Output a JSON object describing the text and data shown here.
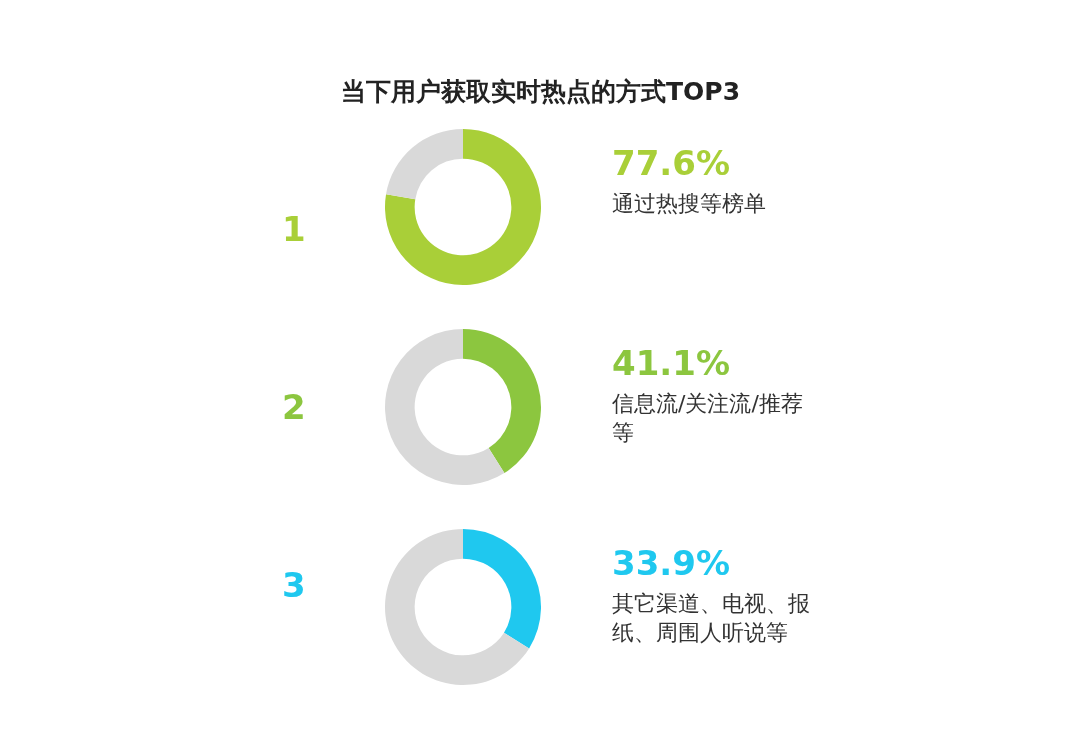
{
  "chart_data": [
    {
      "type": "donut",
      "title": "当下用户获取实时热点的方式TOP3",
      "categories": [
        "通过热搜等榜单",
        null
      ],
      "values": [
        77.6,
        22.4
      ],
      "colors": [
        "#a9cf38",
        "#d9d9d9"
      ],
      "value_labels": [
        "77.6%",
        null
      ],
      "annotations": [
        "1"
      ]
    },
    {
      "type": "donut",
      "categories": [
        "信息流/关注流/推荐等",
        null
      ],
      "values": [
        41.1,
        58.9
      ],
      "colors": [
        "#8cc63f",
        "#d9d9d9"
      ],
      "value_labels": [
        "41.1%",
        null
      ],
      "annotations": [
        "2"
      ]
    },
    {
      "type": "donut",
      "categories": [
        "其它渠道、电视、报纸、周围人听说等",
        null
      ],
      "values": [
        33.9,
        66.1
      ],
      "colors": [
        "#1fc8ef",
        "#d9d9d9"
      ],
      "value_labels": [
        "33.9%",
        null
      ],
      "annotations": [
        "3"
      ]
    }
  ]
}
